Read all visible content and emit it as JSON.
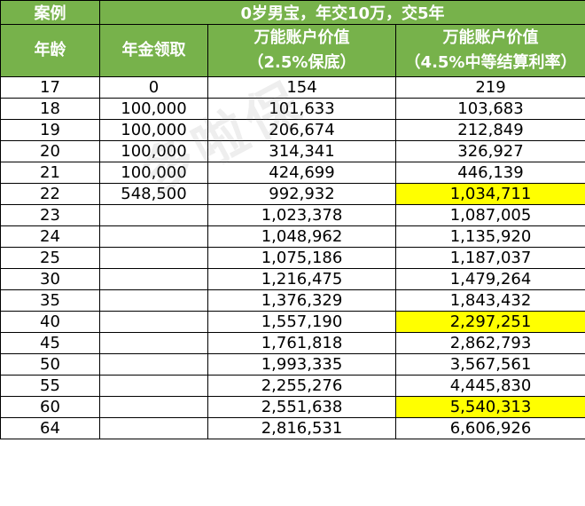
{
  "header": {
    "case_label": "案例",
    "case_title": "0岁男宝，年交10万，交5年",
    "col_age": "年龄",
    "col_annuity": "年金领取",
    "col_guaranteed_line1": "万能账户价值",
    "col_guaranteed_line2": "（2.5%保底）",
    "col_mid_line1": "万能账户价值",
    "col_mid_line2": "（4.5%中等结算利率）"
  },
  "rows": [
    {
      "age": "17",
      "annuity": "0",
      "guaranteed": "154",
      "mid": "219",
      "highlight": false
    },
    {
      "age": "18",
      "annuity": "100,000",
      "guaranteed": "101,633",
      "mid": "103,683",
      "highlight": false
    },
    {
      "age": "19",
      "annuity": "100,000",
      "guaranteed": "206,674",
      "mid": "212,849",
      "highlight": false
    },
    {
      "age": "20",
      "annuity": "100,000",
      "guaranteed": "314,341",
      "mid": "326,927",
      "highlight": false
    },
    {
      "age": "21",
      "annuity": "100,000",
      "guaranteed": "424,699",
      "mid": "446,139",
      "highlight": false
    },
    {
      "age": "22",
      "annuity": "548,500",
      "guaranteed": "992,932",
      "mid": "1,034,711",
      "highlight": true
    },
    {
      "age": "23",
      "annuity": "",
      "guaranteed": "1,023,378",
      "mid": "1,087,005",
      "highlight": false
    },
    {
      "age": "24",
      "annuity": "",
      "guaranteed": "1,048,962",
      "mid": "1,135,920",
      "highlight": false
    },
    {
      "age": "25",
      "annuity": "",
      "guaranteed": "1,075,186",
      "mid": "1,187,037",
      "highlight": false
    },
    {
      "age": "30",
      "annuity": "",
      "guaranteed": "1,216,475",
      "mid": "1,479,264",
      "highlight": false
    },
    {
      "age": "35",
      "annuity": "",
      "guaranteed": "1,376,329",
      "mid": "1,843,432",
      "highlight": false
    },
    {
      "age": "40",
      "annuity": "",
      "guaranteed": "1,557,190",
      "mid": "2,297,251",
      "highlight": true
    },
    {
      "age": "45",
      "annuity": "",
      "guaranteed": "1,761,818",
      "mid": "2,862,793",
      "highlight": false
    },
    {
      "age": "50",
      "annuity": "",
      "guaranteed": "1,993,335",
      "mid": "3,567,561",
      "highlight": false
    },
    {
      "age": "55",
      "annuity": "",
      "guaranteed": "2,255,276",
      "mid": "4,445,830",
      "highlight": false
    },
    {
      "age": "60",
      "annuity": "",
      "guaranteed": "2,551,638",
      "mid": "5,540,313",
      "highlight": true
    },
    {
      "age": "64",
      "annuity": "",
      "guaranteed": "2,816,531",
      "mid": "6,606,926",
      "highlight": false
    }
  ],
  "watermark": "多啦保",
  "colors": {
    "header_bg": "#77b24b",
    "header_text": "#ffffff",
    "highlight": "#ffff00"
  }
}
